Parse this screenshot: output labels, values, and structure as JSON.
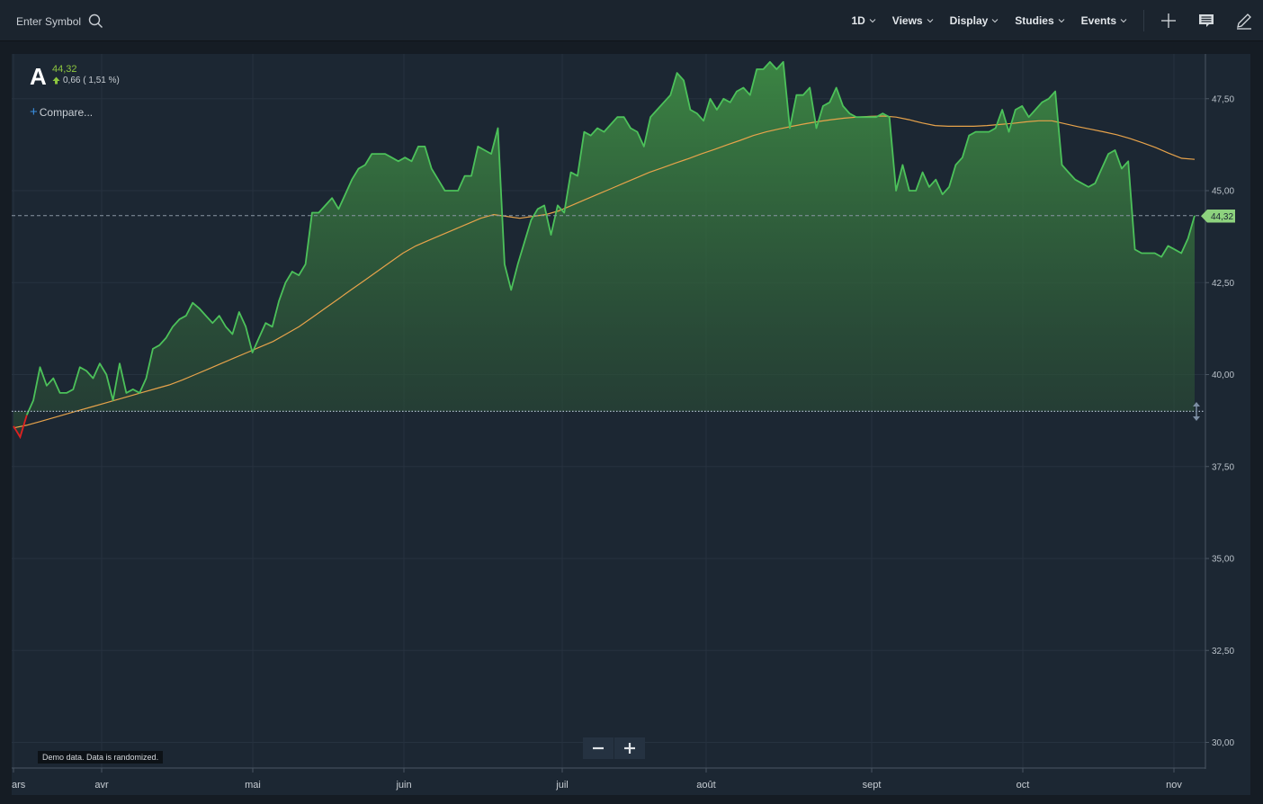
{
  "toolbar": {
    "symbol_placeholder": "Enter Symbol",
    "menus": [
      "1D",
      "Views",
      "Display",
      "Studies",
      "Events"
    ]
  },
  "quote": {
    "symbol": "A",
    "price": "44,32",
    "change": "0,66 ( 1,51 %)"
  },
  "compare_label": "Compare...",
  "demo_note": "Demo data. Data is randomized.",
  "colors": {
    "price_line": "#4cc15a",
    "moving_average": "#e7a34b",
    "negative_segment": "#e02020",
    "price_badge": "#8dd27e"
  },
  "chart_data": {
    "type": "area",
    "x_tick_labels": [
      "ars",
      "avr",
      "mai",
      "juin",
      "juil",
      "août",
      "sept",
      "oct",
      "nov"
    ],
    "y_ticks": [
      "47,50",
      "45,00",
      "42,50",
      "40,00",
      "37,50",
      "35,00",
      "32,50",
      "30,00"
    ],
    "ylim": [
      29.5,
      48.5
    ],
    "last_price_label": "44,32",
    "baseline": 39.0,
    "price": [
      38.6,
      38.3,
      38.9,
      39.3,
      40.2,
      39.7,
      39.9,
      39.5,
      39.5,
      39.6,
      40.2,
      40.1,
      39.9,
      40.3,
      40.0,
      39.3,
      40.3,
      39.5,
      39.6,
      39.5,
      39.9,
      40.7,
      40.8,
      41.0,
      41.3,
      41.5,
      41.6,
      41.95,
      41.8,
      41.6,
      41.4,
      41.6,
      41.3,
      41.1,
      41.7,
      41.3,
      40.6,
      41.0,
      41.4,
      41.3,
      42.0,
      42.5,
      42.8,
      42.7,
      43.0,
      44.4,
      44.4,
      44.6,
      44.8,
      44.5,
      44.9,
      45.3,
      45.6,
      45.7,
      46.0,
      46.0,
      46.0,
      45.9,
      45.8,
      45.9,
      45.8,
      46.2,
      46.2,
      45.6,
      45.3,
      45.0,
      45.0,
      45.0,
      45.4,
      45.4,
      46.2,
      46.1,
      46.0,
      46.7,
      43.0,
      42.3,
      43.0,
      43.6,
      44.2,
      44.5,
      44.6,
      43.8,
      44.6,
      44.4,
      45.5,
      45.4,
      46.6,
      46.5,
      46.7,
      46.6,
      46.8,
      47.0,
      47.0,
      46.7,
      46.6,
      46.2,
      47.0,
      47.2,
      47.4,
      47.6,
      48.2,
      48.0,
      47.2,
      47.1,
      46.9,
      47.5,
      47.2,
      47.5,
      47.4,
      47.7,
      47.8,
      47.6,
      48.3,
      48.3,
      48.5,
      48.3,
      48.5,
      46.7,
      47.6,
      47.6,
      47.8,
      46.7,
      47.3,
      47.4,
      47.8,
      47.3,
      47.1,
      47.0,
      47.0,
      47.0,
      47.0,
      47.1,
      47.0,
      45.0,
      45.7,
      45.0,
      45.0,
      45.5,
      45.1,
      45.3,
      44.9,
      45.1,
      45.7,
      45.9,
      46.5,
      46.6,
      46.6,
      46.6,
      46.7,
      47.2,
      46.6,
      47.2,
      47.3,
      47.0,
      47.2,
      47.4,
      47.5,
      47.7,
      45.7,
      45.5,
      45.3,
      45.2,
      45.1,
      45.2,
      45.6,
      46.0,
      46.1,
      45.6,
      45.8,
      43.4,
      43.3,
      43.3,
      43.3,
      43.2,
      43.5,
      43.4,
      43.3,
      43.7,
      44.32
    ],
    "moving_average": [
      38.55,
      38.62,
      38.72,
      38.82,
      38.92,
      39.02,
      39.12,
      39.22,
      39.32,
      39.42,
      39.52,
      39.62,
      39.72,
      39.85,
      40.0,
      40.15,
      40.3,
      40.45,
      40.6,
      40.75,
      40.9,
      41.1,
      41.3,
      41.55,
      41.8,
      42.05,
      42.3,
      42.55,
      42.8,
      43.05,
      43.3,
      43.5,
      43.65,
      43.8,
      43.95,
      44.1,
      44.25,
      44.35,
      44.3,
      44.25,
      44.3,
      44.35,
      44.45,
      44.6,
      44.75,
      44.9,
      45.05,
      45.2,
      45.35,
      45.5,
      45.62,
      45.75,
      45.87,
      46.0,
      46.12,
      46.25,
      46.37,
      46.5,
      46.6,
      46.68,
      46.75,
      46.82,
      46.88,
      46.93,
      46.97,
      47.0,
      47.02,
      47.03,
      47.0,
      46.93,
      46.84,
      46.77,
      46.75,
      46.75,
      46.75,
      46.77,
      46.8,
      46.83,
      46.87,
      46.9,
      46.9,
      46.82,
      46.74,
      46.67,
      46.6,
      46.52,
      46.42,
      46.3,
      46.17,
      46.02,
      45.88,
      45.85
    ]
  }
}
